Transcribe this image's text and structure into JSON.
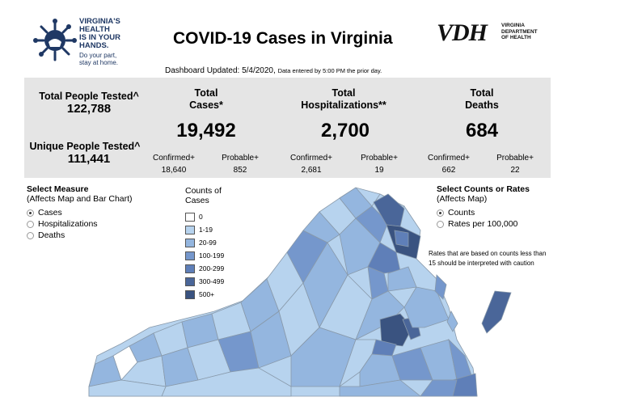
{
  "header": {
    "title": "COVID-19 Cases in Virginia",
    "updated_label": "Dashboard Updated: 5/4/2020,",
    "updated_note": "Data entered by 5:00 PM the prior day.",
    "campaign_logo": {
      "line1": "VIRGINIA'S",
      "line2": "HEALTH",
      "line3": "IS IN YOUR",
      "line4": "HANDS.",
      "line5": "Do your part,",
      "line6": "stay at home."
    },
    "vdh_logo": {
      "mark": "VDH",
      "line1": "VIRGINIA",
      "line2": "DEPARTMENT",
      "line3": "OF HEALTH"
    }
  },
  "stats": {
    "total_tested_label": "Total People Tested^",
    "total_tested_value": "122,788",
    "unique_tested_label": "Unique People Tested^",
    "unique_tested_value": "111,441",
    "cases": {
      "label_line1": "Total",
      "label_line2": "Cases*",
      "value": "19,492",
      "confirmed_label": "Confirmed+",
      "confirmed_value": "18,640",
      "probable_label": "Probable+",
      "probable_value": "852"
    },
    "hospitalizations": {
      "label_line1": "Total",
      "label_line2": "Hospitalizations**",
      "value": "2,700",
      "confirmed_label": "Confirmed+",
      "confirmed_value": "2,681",
      "probable_label": "Probable+",
      "probable_value": "19"
    },
    "deaths": {
      "label_line1": "Total",
      "label_line2": "Deaths",
      "value": "684",
      "confirmed_label": "Confirmed+",
      "confirmed_value": "662",
      "probable_label": "Probable+",
      "probable_value": "22"
    }
  },
  "measure_selector": {
    "title": "Select Measure",
    "subtitle": "(Affects Map and Bar Chart)",
    "options": [
      "Cases",
      "Hospitalizations",
      "Deaths"
    ],
    "selected": "Cases"
  },
  "rate_selector": {
    "title": "Select Counts or Rates",
    "subtitle": "(Affects Map)",
    "options": [
      "Counts",
      "Rates per 100,000"
    ],
    "selected": "Counts"
  },
  "legend": {
    "title_line1": "Counts of",
    "title_line2": "Cases",
    "items": [
      {
        "label": "0",
        "color": "#ffffff"
      },
      {
        "label": "1-19",
        "color": "#b7d3ee"
      },
      {
        "label": "20-99",
        "color": "#94b6df"
      },
      {
        "label": "100-199",
        "color": "#7597cc"
      },
      {
        "label": "200-299",
        "color": "#5f7fb8"
      },
      {
        "label": "300-499",
        "color": "#4a6699"
      },
      {
        "label": "500+",
        "color": "#3a5380"
      }
    ]
  },
  "caution_note": "Rates that are based on counts less than 15 should be interpreted with caution",
  "colors": {
    "panel_bg": "#e5e5e5",
    "map_border": "#8899aa",
    "campaign_blue": "#1f3864"
  }
}
